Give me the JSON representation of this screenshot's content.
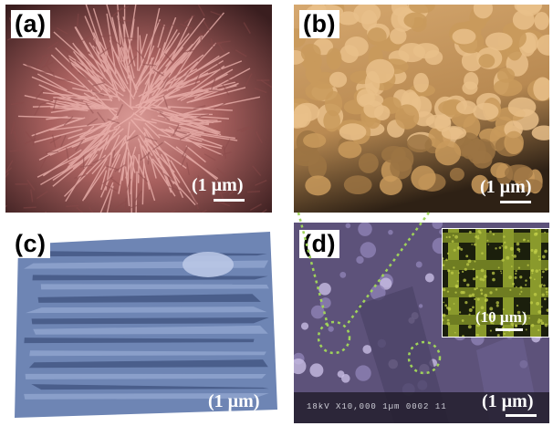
{
  "figure": {
    "panels": [
      {
        "label": "(a)",
        "scale_text": "(1 µm)"
      },
      {
        "label": "(b)",
        "scale_text": "(1 µm)"
      },
      {
        "label": "(c)",
        "scale_text": "(1 µm)"
      },
      {
        "label": "(d)",
        "scale_text": "(1 µm)",
        "inset_scale_text": "(10 µm)",
        "instrument_text": "18kV  X10,000   1µm 0002 11",
        "highlight_color": "#9fd35a"
      }
    ],
    "colors": {
      "panel_a": "#b46a68",
      "panel_b": "#c79b63",
      "panel_c": "#6f86b6",
      "panel_d": "#6a5f86",
      "inset": "#5a6a1e"
    }
  }
}
